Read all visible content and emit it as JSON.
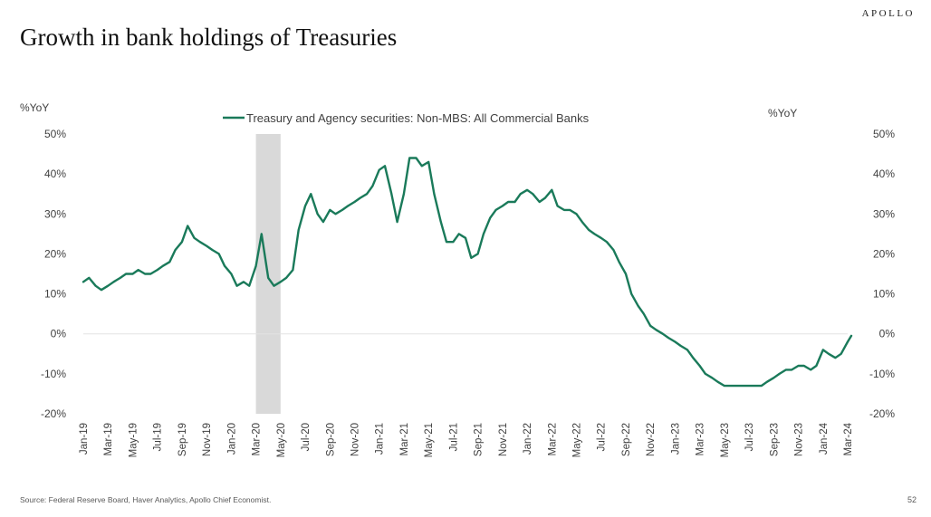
{
  "brand": "APOLLO",
  "title": "Growth in bank holdings of Treasuries",
  "source": "Source: Federal Reserve Board, Haver Analytics, Apollo Chief Economist.",
  "page_number": "52",
  "colors": {
    "line": "#1a7a5a",
    "recession": "#d9d9d9",
    "text": "#404040"
  },
  "chart_data": {
    "type": "line",
    "y_left_label": "%YoY",
    "y_right_label": "%YoY",
    "ylim": [
      -20,
      50
    ],
    "yticks": [
      -20,
      -10,
      0,
      10,
      20,
      30,
      40,
      50
    ],
    "ytick_labels": [
      "-20%",
      "-10%",
      "0%",
      "10%",
      "20%",
      "30%",
      "40%",
      "50%"
    ],
    "grid": false,
    "zero_line": true,
    "legend_placement": "top-center",
    "x_start": "2019-01",
    "x_end": "2024-03",
    "x_tick_labels": [
      "Jan-19",
      "Mar-19",
      "May-19",
      "Jul-19",
      "Sep-19",
      "Nov-19",
      "Jan-20",
      "Mar-20",
      "May-20",
      "Jul-20",
      "Sep-20",
      "Nov-20",
      "Jan-21",
      "Mar-21",
      "May-21",
      "Jul-21",
      "Sep-21",
      "Nov-21",
      "Jan-22",
      "Mar-22",
      "May-22",
      "Jul-22",
      "Sep-22",
      "Nov-22",
      "Jan-23",
      "Mar-23",
      "May-23",
      "Jul-23",
      "Sep-23",
      "Nov-23",
      "Jan-24",
      "Mar-24"
    ],
    "shaded_regions": [
      {
        "start": "2020-03",
        "end": "2020-05"
      }
    ],
    "series": [
      {
        "name": "Treasury and Agency securities: Non-MBS: All Commercial Banks",
        "x": [
          "2019-01-01",
          "2019-01-15",
          "2019-02-01",
          "2019-02-15",
          "2019-03-01",
          "2019-03-15",
          "2019-04-01",
          "2019-04-15",
          "2019-05-01",
          "2019-05-15",
          "2019-06-01",
          "2019-06-15",
          "2019-07-01",
          "2019-07-15",
          "2019-08-01",
          "2019-08-15",
          "2019-09-01",
          "2019-09-15",
          "2019-10-01",
          "2019-10-15",
          "2019-11-01",
          "2019-11-15",
          "2019-12-01",
          "2019-12-15",
          "2020-01-01",
          "2020-01-15",
          "2020-02-01",
          "2020-02-15",
          "2020-03-01",
          "2020-03-15",
          "2020-04-01",
          "2020-04-15",
          "2020-05-01",
          "2020-05-15",
          "2020-06-01",
          "2020-06-15",
          "2020-07-01",
          "2020-07-15",
          "2020-08-01",
          "2020-08-15",
          "2020-09-01",
          "2020-09-15",
          "2020-10-01",
          "2020-10-15",
          "2020-11-01",
          "2020-11-15",
          "2020-12-01",
          "2020-12-15",
          "2021-01-01",
          "2021-01-15",
          "2021-02-01",
          "2021-02-15",
          "2021-03-01",
          "2021-03-15",
          "2021-04-01",
          "2021-04-15",
          "2021-05-01",
          "2021-05-15",
          "2021-06-01",
          "2021-06-15",
          "2021-07-01",
          "2021-07-15",
          "2021-08-01",
          "2021-08-15",
          "2021-09-01",
          "2021-09-15",
          "2021-10-01",
          "2021-10-15",
          "2021-11-01",
          "2021-11-15",
          "2021-12-01",
          "2021-12-15",
          "2022-01-01",
          "2022-01-15",
          "2022-02-01",
          "2022-02-15",
          "2022-03-01",
          "2022-03-15",
          "2022-04-01",
          "2022-04-15",
          "2022-05-01",
          "2022-05-15",
          "2022-06-01",
          "2022-06-15",
          "2022-07-01",
          "2022-07-15",
          "2022-08-01",
          "2022-08-15",
          "2022-09-01",
          "2022-09-15",
          "2022-10-01",
          "2022-10-15",
          "2022-11-01",
          "2022-11-15",
          "2022-12-01",
          "2022-12-15",
          "2023-01-01",
          "2023-01-15",
          "2023-02-01",
          "2023-02-15",
          "2023-03-01",
          "2023-03-15",
          "2023-04-01",
          "2023-04-15",
          "2023-05-01",
          "2023-05-15",
          "2023-06-01",
          "2023-06-15",
          "2023-07-01",
          "2023-07-15",
          "2023-08-01",
          "2023-08-15",
          "2023-09-01",
          "2023-09-15",
          "2023-10-01",
          "2023-10-15",
          "2023-11-01",
          "2023-11-15",
          "2023-12-01",
          "2023-12-15",
          "2024-01-01",
          "2024-01-15",
          "2024-02-01",
          "2024-02-15",
          "2024-03-01",
          "2024-03-10"
        ],
        "y": [
          13,
          14,
          12,
          11,
          12,
          13,
          14,
          15,
          15,
          16,
          15,
          15,
          16,
          17,
          18,
          21,
          23,
          27,
          24,
          23,
          22,
          21,
          20,
          17,
          15,
          12,
          13,
          12,
          17,
          25,
          14,
          12,
          13,
          14,
          16,
          26,
          32,
          35,
          30,
          28,
          31,
          30,
          31,
          32,
          33,
          34,
          35,
          37,
          41,
          42,
          35,
          28,
          35,
          44,
          44,
          42,
          43,
          35,
          28,
          23,
          23,
          25,
          24,
          19,
          20,
          25,
          29,
          31,
          32,
          33,
          33,
          35,
          36,
          35,
          33,
          34,
          36,
          32,
          31,
          31,
          30,
          28,
          26,
          25,
          24,
          23,
          21,
          18,
          15,
          10,
          7,
          5,
          2,
          1,
          0,
          -1,
          -2,
          -3,
          -4,
          -6,
          -8,
          -10,
          -11,
          -12,
          -13,
          -13,
          -13,
          -13,
          -13,
          -13,
          -13,
          -12,
          -11,
          -10,
          -9,
          -9,
          -8,
          -8,
          -9,
          -8,
          -4,
          -5,
          -6,
          -5,
          -2,
          -0.5
        ]
      }
    ]
  }
}
